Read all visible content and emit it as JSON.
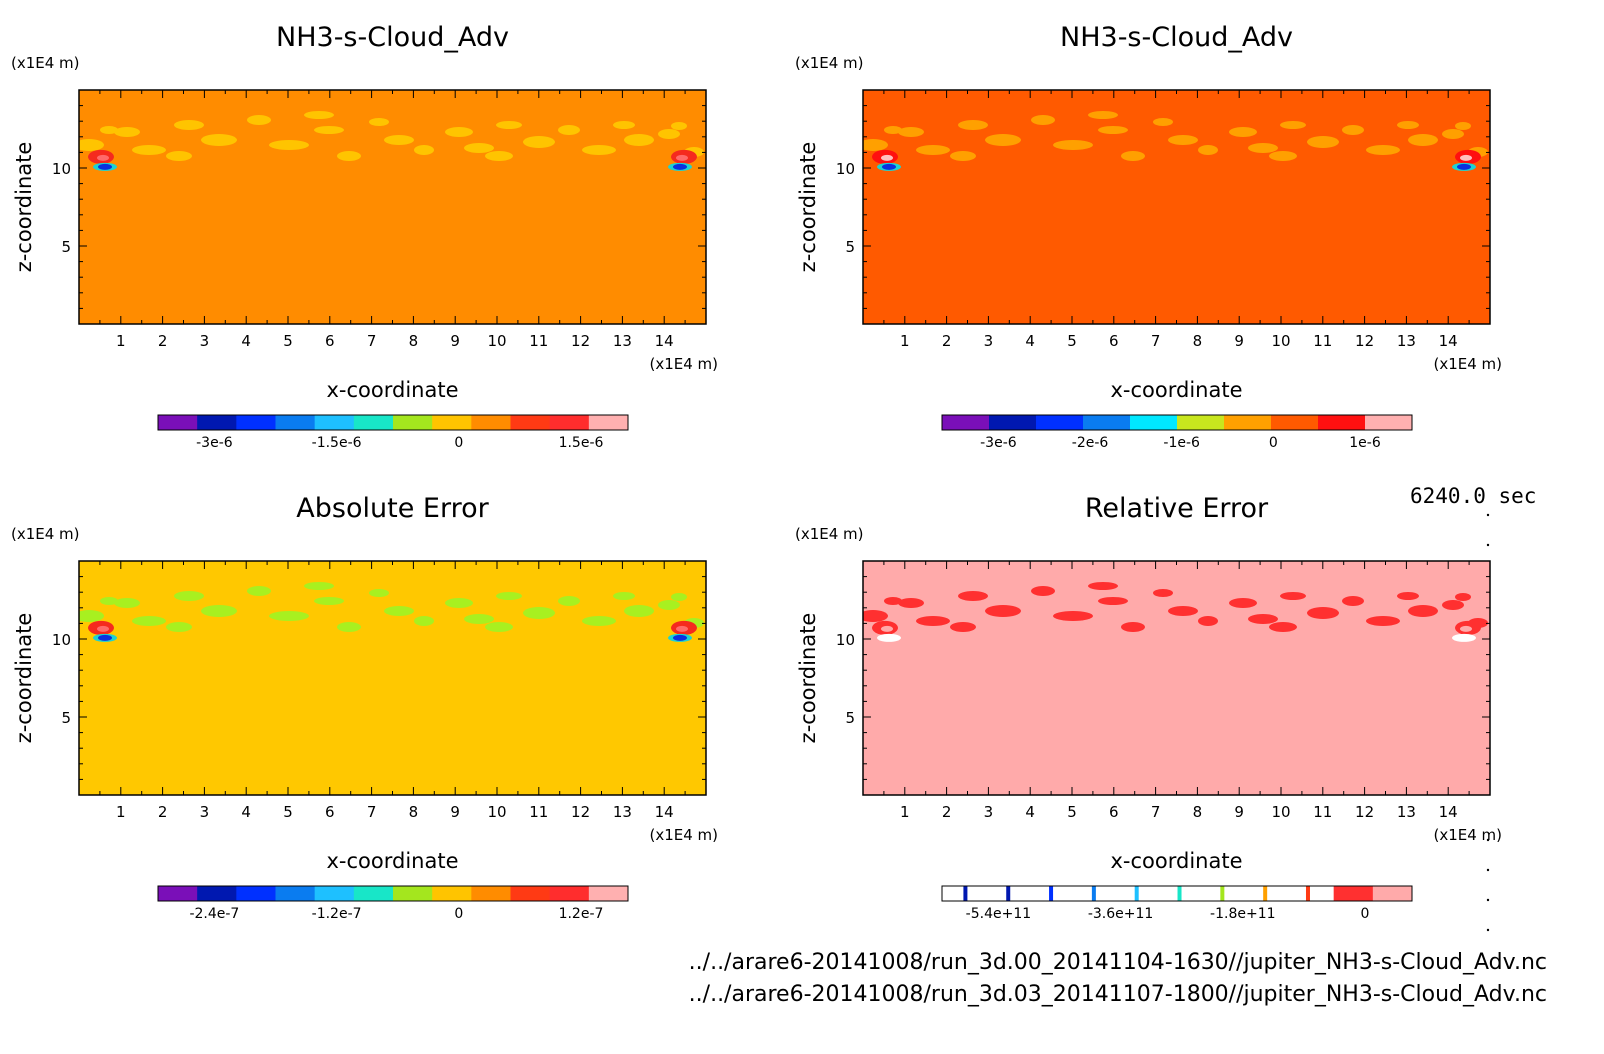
{
  "figure": {
    "time_label": "6240.0 sec",
    "files": [
      "../../arare6-20141008/run_3d.00_20141104-1630//jupiter_NH3-s-Cloud_Adv.nc",
      "../../arare6-20141008/run_3d.03_20141107-1800//jupiter_NH3-s-Cloud_Adv.nc"
    ]
  },
  "chart_data": [
    {
      "type": "heatmap",
      "title": "NH3-s-Cloud_Adv",
      "xlabel": "x-coordinate",
      "ylabel": "z-coordinate",
      "x_unit": "(x1E4 m)",
      "y_unit": "(x1E4 m)",
      "xlim": [
        0,
        15
      ],
      "ylim": [
        0,
        15
      ],
      "x_ticks": [
        "1",
        "2",
        "3",
        "4",
        "5",
        "6",
        "7",
        "8",
        "9",
        "10",
        "11",
        "12",
        "13",
        "14"
      ],
      "y_ticks": [
        "5",
        "10"
      ],
      "background_level": "0 to 2e-7",
      "colors": {
        "background": "#ff8c00",
        "band": "#ffc400",
        "red": "#f52a1e",
        "pink": "#ff6a6a",
        "blue": "#0a30e0",
        "cyan": "#1ed2d2"
      },
      "colorbar": {
        "labels": [
          "-3e-6",
          "-1.5e-6",
          "0",
          "1.5e-6"
        ],
        "colors": [
          "#7a0fb8",
          "#0018b0",
          "#0030ff",
          "#0a7cf0",
          "#1ec0ff",
          "#18e6c8",
          "#a4e61e",
          "#ffc400",
          "#ff8c00",
          "#ff3a14",
          "#ff2d2d",
          "#ffb0b0"
        ]
      }
    },
    {
      "type": "heatmap",
      "title": "NH3-s-Cloud_Adv",
      "xlabel": "x-coordinate",
      "ylabel": "z-coordinate",
      "x_unit": "(x1E4 m)",
      "y_unit": "(x1E4 m)",
      "xlim": [
        0,
        15
      ],
      "ylim": [
        0,
        15
      ],
      "x_ticks": [
        "1",
        "2",
        "3",
        "4",
        "5",
        "6",
        "7",
        "8",
        "9",
        "10",
        "11",
        "12",
        "13",
        "14"
      ],
      "y_ticks": [
        "5",
        "10"
      ],
      "background_level": "0 to 5e-7",
      "colors": {
        "background": "#ff5a00",
        "band": "#ffa000",
        "red": "#ff1010",
        "pink": "#ffc0c0",
        "blue": "#0a30e0",
        "cyan": "#1ed2d2"
      },
      "colorbar": {
        "labels": [
          "-3e-6",
          "-2e-6",
          "-1e-6",
          "0",
          "1e-6"
        ],
        "colors": [
          "#7a0fb8",
          "#0018b0",
          "#0030ff",
          "#0a7cf0",
          "#00e8ff",
          "#c8e61e",
          "#ffa000",
          "#ff5a00",
          "#ff1010",
          "#ffb0b0"
        ]
      }
    },
    {
      "type": "heatmap",
      "title": "Absolute Error",
      "xlabel": "x-coordinate",
      "ylabel": "z-coordinate",
      "x_unit": "(x1E4 m)",
      "y_unit": "(x1E4 m)",
      "xlim": [
        0,
        15
      ],
      "ylim": [
        0,
        15
      ],
      "x_ticks": [
        "1",
        "2",
        "3",
        "4",
        "5",
        "6",
        "7",
        "8",
        "9",
        "10",
        "11",
        "12",
        "13",
        "14"
      ],
      "y_ticks": [
        "5",
        "10"
      ],
      "background_level": "0 to 4e-8",
      "colors": {
        "background": "#ffc800",
        "band": "#a8f020",
        "red": "#f52a1e",
        "pink": "#ff6a6a",
        "blue": "#0a30e0",
        "cyan": "#1ed2d2"
      },
      "colorbar": {
        "labels": [
          "-2.4e-7",
          "-1.2e-7",
          "0",
          "1.2e-7"
        ],
        "colors": [
          "#7a0fb8",
          "#0018b0",
          "#0030ff",
          "#0a7cf0",
          "#1ec0ff",
          "#18e6c8",
          "#a4e61e",
          "#ffc400",
          "#ff8c00",
          "#ff3a14",
          "#ff2d2d",
          "#ffb0b0"
        ]
      }
    },
    {
      "type": "heatmap",
      "title": "Relative Error",
      "xlabel": "x-coordinate",
      "ylabel": "z-coordinate",
      "x_unit": "(x1E4 m)",
      "y_unit": "(x1E4 m)",
      "xlim": [
        0,
        15
      ],
      "ylim": [
        0,
        15
      ],
      "x_ticks": [
        "1",
        "2",
        "3",
        "4",
        "5",
        "6",
        "7",
        "8",
        "9",
        "10",
        "11",
        "12",
        "13",
        "14"
      ],
      "y_ticks": [
        "5",
        "10"
      ],
      "background_level": "highest",
      "colors": {
        "background": "#ffaaaa",
        "band": "#ff3030",
        "red": "#ff3030",
        "pink": "#ffaaaa",
        "blue": "#ffffff",
        "cyan": "#ffffff"
      },
      "colorbar": {
        "labels": [
          "-5.4e+11",
          "-3.6e+11",
          "-1.8e+11",
          "0"
        ],
        "colors": [
          "#ffffff",
          "#ffffff",
          "#ffffff",
          "#ffffff",
          "#ffffff",
          "#ffffff",
          "#ffffff",
          "#ffffff",
          "#ffffff",
          "#ffffff",
          "#ff3030",
          "#ffaaaa"
        ],
        "line_colors": [
          "#0018b0",
          "#0018b0",
          "#0030ff",
          "#0a7cf0",
          "#1ec0ff",
          "#18e6c8",
          "#a4e61e",
          "#ffa000",
          "#ff3a14"
        ]
      }
    }
  ]
}
